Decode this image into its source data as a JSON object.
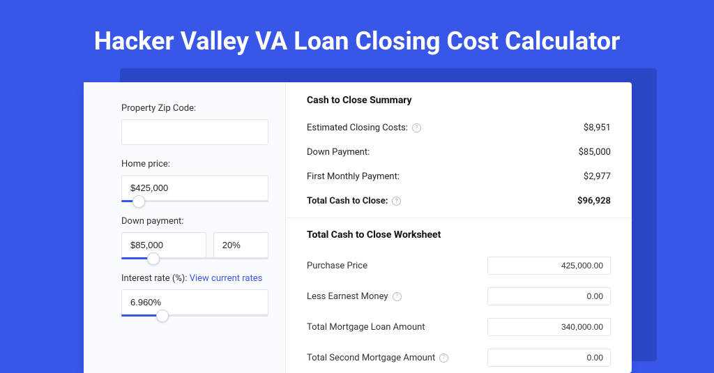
{
  "page": {
    "title": "Hacker Valley VA Loan Closing Cost Calculator",
    "background_color": "#3857e8"
  },
  "inputs": {
    "zip": {
      "label": "Property Zip Code:",
      "value": ""
    },
    "home_price": {
      "label": "Home price:",
      "value": "$425,000",
      "slider_pct": 12
    },
    "down_payment": {
      "label": "Down payment:",
      "value": "$85,000",
      "pct_value": "20%",
      "slider_pct": 22
    },
    "interest_rate": {
      "label": "Interest rate (%):",
      "link_text": "View current rates",
      "value": "6.960%",
      "slider_pct": 28
    }
  },
  "summary": {
    "title": "Cash to Close Summary",
    "rows": [
      {
        "label": "Estimated Closing Costs:",
        "help": true,
        "value": "$8,951",
        "bold": false
      },
      {
        "label": "Down Payment:",
        "help": false,
        "value": "$85,000",
        "bold": false
      },
      {
        "label": "First Monthly Payment:",
        "help": false,
        "value": "$2,977",
        "bold": false
      },
      {
        "label": "Total Cash to Close:",
        "help": true,
        "value": "$96,928",
        "bold": true
      }
    ]
  },
  "worksheet": {
    "title": "Total Cash to Close Worksheet",
    "rows": [
      {
        "label": "Purchase Price",
        "help": false,
        "value": "425,000.00"
      },
      {
        "label": "Less Earnest Money",
        "help": true,
        "value": "0.00"
      },
      {
        "label": "Total Mortgage Loan Amount",
        "help": false,
        "value": "340,000.00"
      },
      {
        "label": "Total Second Mortgage Amount",
        "help": true,
        "value": "0.00"
      }
    ]
  }
}
